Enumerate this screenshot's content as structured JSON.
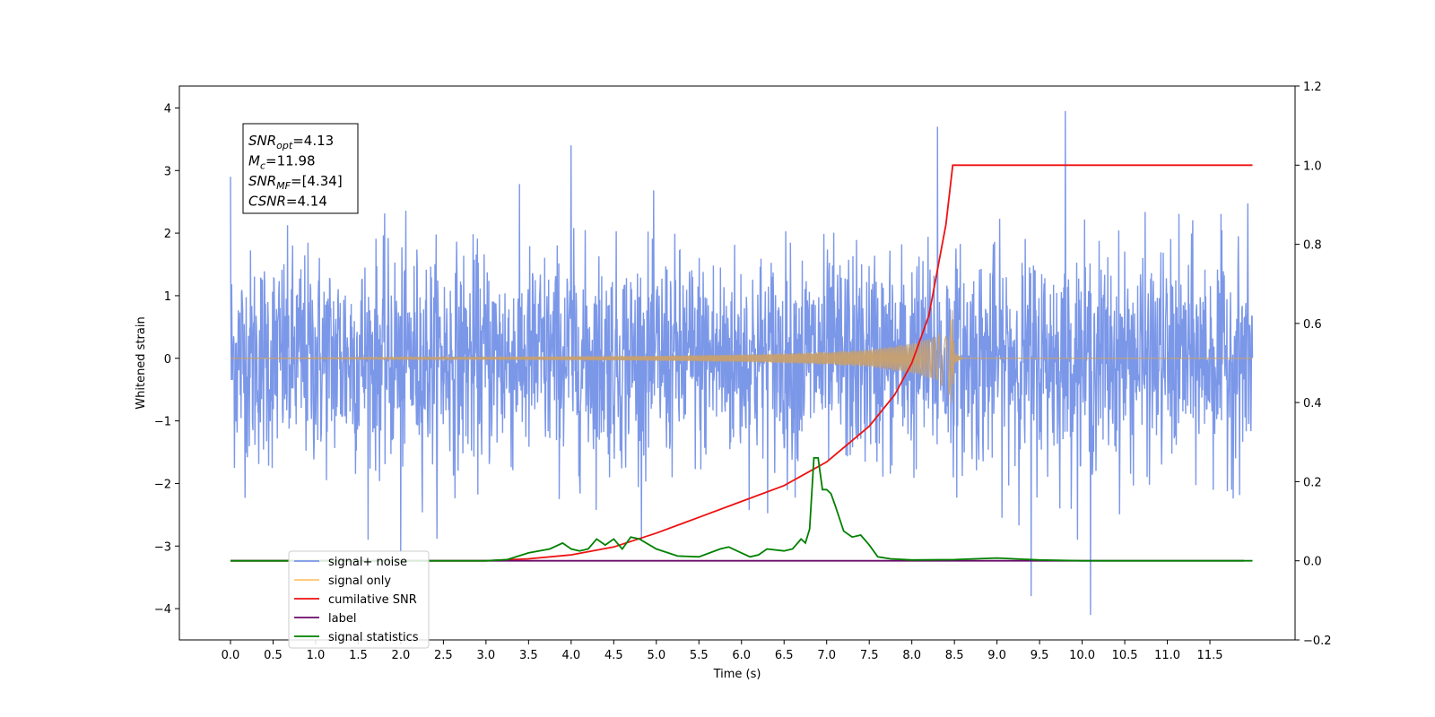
{
  "chart_data": {
    "type": "line",
    "xlabel": "Time (s)",
    "ylabel": "Whitened strain",
    "xlim": [
      -0.6,
      12.5
    ],
    "ylim": [
      -4.5,
      4.35
    ],
    "y2lim": [
      -0.2,
      1.2
    ],
    "x_ticks": [
      "0.0",
      "0.5",
      "1.0",
      "1.5",
      "2.0",
      "2.5",
      "3.0",
      "3.5",
      "4.0",
      "4.5",
      "5.0",
      "5.5",
      "6.0",
      "6.5",
      "7.0",
      "7.5",
      "8.0",
      "8.5",
      "9.0",
      "9.5",
      "10.0",
      "10.5",
      "11.0",
      "11.5"
    ],
    "y_ticks": [
      "4",
      "3",
      "2",
      "1",
      "0",
      "−1",
      "−2",
      "−3",
      "−4"
    ],
    "y2_ticks": [
      "1.2",
      "1.0",
      "0.8",
      "0.6",
      "0.4",
      "0.2",
      "0.0",
      "−0.2"
    ],
    "grid": false,
    "legend_placement": "lower-left",
    "annotation": {
      "lines": [
        {
          "base": "SNR",
          "sub": "opt",
          "value": "=4.13"
        },
        {
          "base": "M",
          "sub": "c",
          "value": "=11.98"
        },
        {
          "base": "SNR",
          "sub": "MF",
          "value": "=[4.34]"
        },
        {
          "base": "CSNR",
          "sub": "",
          "value": "=4.14"
        }
      ]
    },
    "series": [
      {
        "name": "signal+ noise",
        "axis": "left",
        "color": "#7b97e8",
        "noise_std": 0.85,
        "x_range": [
          0.0,
          12.0
        ],
        "notable_peaks": [
          [
            0.0,
            2.9
          ],
          [
            4.0,
            3.4
          ],
          [
            8.3,
            3.7
          ],
          [
            9.8,
            3.95
          ],
          [
            2.0,
            -3.1
          ],
          [
            9.4,
            -3.8
          ],
          [
            10.1,
            -4.1
          ]
        ]
      },
      {
        "name": "signal only",
        "axis": "left",
        "color": "#c8a06e",
        "merger_time": 8.48,
        "envelope": {
          "x": [
            0,
            3,
            5,
            6,
            7,
            7.5,
            8.0,
            8.3,
            8.45,
            8.48,
            8.5,
            8.6,
            12.0
          ],
          "y": [
            0.0,
            0.02,
            0.04,
            0.06,
            0.1,
            0.14,
            0.24,
            0.36,
            0.6,
            0.8,
            0.1,
            0.0,
            0.0
          ]
        }
      },
      {
        "name": "cumilative SNR",
        "axis": "right",
        "color": "#ee1111",
        "x": [
          0.0,
          3.0,
          3.5,
          4.0,
          4.5,
          5.0,
          5.5,
          6.0,
          6.5,
          7.0,
          7.5,
          7.8,
          8.0,
          8.2,
          8.4,
          8.48,
          8.5,
          12.0
        ],
        "y": [
          0.0,
          0.0,
          0.005,
          0.015,
          0.035,
          0.07,
          0.11,
          0.15,
          0.19,
          0.25,
          0.34,
          0.42,
          0.5,
          0.62,
          0.85,
          1.0,
          1.0,
          1.0
        ]
      },
      {
        "name": "label",
        "axis": "right",
        "color": "#6a0a6a",
        "x": [
          0.0,
          11.9
        ],
        "y": [
          0.0,
          0.0
        ]
      },
      {
        "name": "signal statistics",
        "axis": "right",
        "color": "#008000",
        "x": [
          0.0,
          3.0,
          3.25,
          3.5,
          3.75,
          3.9,
          4.0,
          4.1,
          4.2,
          4.3,
          4.4,
          4.5,
          4.6,
          4.7,
          4.8,
          5.0,
          5.25,
          5.5,
          5.75,
          5.85,
          6.0,
          6.1,
          6.2,
          6.3,
          6.5,
          6.6,
          6.7,
          6.75,
          6.8,
          6.85,
          6.9,
          6.95,
          7.0,
          7.05,
          7.1,
          7.2,
          7.3,
          7.4,
          7.5,
          7.6,
          7.75,
          8.0,
          8.5,
          9.0,
          9.5,
          10.0,
          12.0
        ],
        "y": [
          0.0,
          0.0,
          0.003,
          0.02,
          0.03,
          0.045,
          0.03,
          0.025,
          0.03,
          0.055,
          0.04,
          0.055,
          0.03,
          0.06,
          0.055,
          0.03,
          0.012,
          0.01,
          0.03,
          0.035,
          0.02,
          0.01,
          0.015,
          0.03,
          0.025,
          0.03,
          0.055,
          0.045,
          0.08,
          0.26,
          0.26,
          0.18,
          0.18,
          0.17,
          0.14,
          0.075,
          0.06,
          0.065,
          0.04,
          0.01,
          0.005,
          0.002,
          0.003,
          0.007,
          0.002,
          0.0,
          0.0
        ]
      }
    ]
  }
}
